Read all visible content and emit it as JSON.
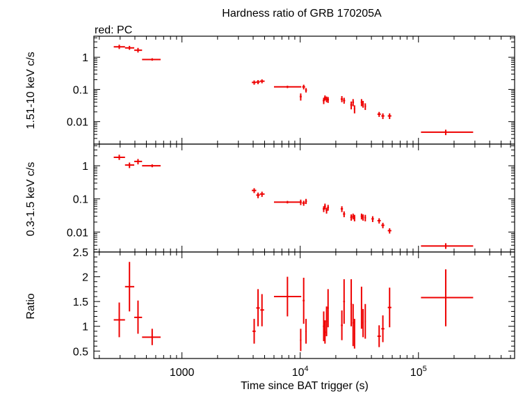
{
  "chart_data": {
    "type": "scatter",
    "title": "Hardness ratio of GRB 170205A",
    "legend": "red: PC",
    "xlabel": "Time since BAT trigger (s)",
    "xscale": "log",
    "xlim": [
      180,
      650000
    ],
    "x_ticks": [
      {
        "value": 1000,
        "label": "1000",
        "sup": ""
      },
      {
        "value": 10000,
        "label": "10",
        "sup": "4"
      },
      {
        "value": 100000,
        "label": "10",
        "sup": "5"
      }
    ],
    "panels": [
      {
        "ylabel": "1.51-10 keV c/s",
        "yscale": "log",
        "ylim": [
          0.002,
          4.5
        ],
        "y_ticks": [
          {
            "value": 1,
            "label": "1"
          },
          {
            "value": 0.1,
            "label": "0.1"
          },
          {
            "value": 0.01,
            "label": "0.01"
          }
        ],
        "points": [
          {
            "x": 295,
            "xlo": 265,
            "xhi": 330,
            "y": 2.1,
            "ylo": 1.8,
            "yhi": 2.45
          },
          {
            "x": 360,
            "xlo": 330,
            "xhi": 395,
            "y": 1.95,
            "ylo": 1.7,
            "yhi": 2.25
          },
          {
            "x": 425,
            "xlo": 395,
            "xhi": 460,
            "y": 1.65,
            "ylo": 1.4,
            "yhi": 1.95
          },
          {
            "x": 560,
            "xlo": 460,
            "xhi": 660,
            "y": 0.85,
            "ylo": 0.78,
            "yhi": 0.93
          },
          {
            "x": 4080,
            "xlo": 3900,
            "xhi": 4250,
            "y": 0.165,
            "ylo": 0.14,
            "yhi": 0.19
          },
          {
            "x": 4400,
            "xlo": 4250,
            "xhi": 4550,
            "y": 0.17,
            "ylo": 0.145,
            "yhi": 0.195
          },
          {
            "x": 4750,
            "xlo": 4550,
            "xhi": 5000,
            "y": 0.18,
            "ylo": 0.155,
            "yhi": 0.205
          },
          {
            "x": 7800,
            "xlo": 6000,
            "xhi": 10200,
            "y": 0.12,
            "ylo": 0.11,
            "yhi": 0.13
          },
          {
            "x": 10100,
            "xlo": 9900,
            "xhi": 10300,
            "y": 0.06,
            "ylo": 0.045,
            "yhi": 0.075
          },
          {
            "x": 10700,
            "xlo": 10400,
            "xhi": 11000,
            "y": 0.12,
            "ylo": 0.1,
            "yhi": 0.14
          },
          {
            "x": 11200,
            "xlo": 11000,
            "xhi": 11400,
            "y": 0.095,
            "ylo": 0.08,
            "yhi": 0.11
          },
          {
            "x": 15800,
            "xlo": 15500,
            "xhi": 16100,
            "y": 0.045,
            "ylo": 0.035,
            "yhi": 0.055
          },
          {
            "x": 16200,
            "xlo": 15900,
            "xhi": 16500,
            "y": 0.055,
            "ylo": 0.045,
            "yhi": 0.065
          },
          {
            "x": 16700,
            "xlo": 16400,
            "xhi": 17000,
            "y": 0.05,
            "ylo": 0.04,
            "yhi": 0.06
          },
          {
            "x": 17200,
            "xlo": 16900,
            "xhi": 17500,
            "y": 0.048,
            "ylo": 0.038,
            "yhi": 0.058
          },
          {
            "x": 22500,
            "xlo": 22000,
            "xhi": 23000,
            "y": 0.05,
            "ylo": 0.04,
            "yhi": 0.062
          },
          {
            "x": 23500,
            "xlo": 23000,
            "xhi": 24000,
            "y": 0.045,
            "ylo": 0.036,
            "yhi": 0.055
          },
          {
            "x": 27000,
            "xlo": 26500,
            "xhi": 27500,
            "y": 0.033,
            "ylo": 0.024,
            "yhi": 0.042
          },
          {
            "x": 28000,
            "xlo": 27500,
            "xhi": 28500,
            "y": 0.04,
            "ylo": 0.03,
            "yhi": 0.05
          },
          {
            "x": 28800,
            "xlo": 28400,
            "xhi": 29200,
            "y": 0.025,
            "ylo": 0.018,
            "yhi": 0.032
          },
          {
            "x": 33000,
            "xlo": 32500,
            "xhi": 33500,
            "y": 0.04,
            "ylo": 0.03,
            "yhi": 0.05
          },
          {
            "x": 34000,
            "xlo": 33500,
            "xhi": 34500,
            "y": 0.035,
            "ylo": 0.027,
            "yhi": 0.044
          },
          {
            "x": 35500,
            "xlo": 35000,
            "xhi": 36000,
            "y": 0.03,
            "ylo": 0.023,
            "yhi": 0.037
          },
          {
            "x": 46500,
            "xlo": 45000,
            "xhi": 48000,
            "y": 0.017,
            "ylo": 0.014,
            "yhi": 0.02
          },
          {
            "x": 50000,
            "xlo": 48500,
            "xhi": 51500,
            "y": 0.015,
            "ylo": 0.012,
            "yhi": 0.018
          },
          {
            "x": 57000,
            "xlo": 55000,
            "xhi": 59000,
            "y": 0.015,
            "ylo": 0.012,
            "yhi": 0.018
          },
          {
            "x": 170000,
            "xlo": 105000,
            "xhi": 290000,
            "y": 0.0047,
            "ylo": 0.0038,
            "yhi": 0.0056
          }
        ]
      },
      {
        "ylabel": "0.3-1.5 keV c/s",
        "yscale": "log",
        "ylim": [
          0.0025,
          4.5
        ],
        "y_ticks": [
          {
            "value": 1,
            "label": "1"
          },
          {
            "value": 0.1,
            "label": "0.1"
          },
          {
            "value": 0.01,
            "label": "0.01"
          }
        ],
        "points": [
          {
            "x": 295,
            "xlo": 265,
            "xhi": 330,
            "y": 1.8,
            "ylo": 1.5,
            "yhi": 2.15
          },
          {
            "x": 360,
            "xlo": 330,
            "xhi": 395,
            "y": 1.05,
            "ylo": 0.85,
            "yhi": 1.25
          },
          {
            "x": 425,
            "xlo": 395,
            "xhi": 460,
            "y": 1.35,
            "ylo": 1.1,
            "yhi": 1.6
          },
          {
            "x": 560,
            "xlo": 460,
            "xhi": 660,
            "y": 1.0,
            "ylo": 0.9,
            "yhi": 1.1
          },
          {
            "x": 4080,
            "xlo": 3900,
            "xhi": 4250,
            "y": 0.18,
            "ylo": 0.15,
            "yhi": 0.21
          },
          {
            "x": 4400,
            "xlo": 4250,
            "xhi": 4550,
            "y": 0.13,
            "ylo": 0.105,
            "yhi": 0.155
          },
          {
            "x": 4750,
            "xlo": 4550,
            "xhi": 5000,
            "y": 0.14,
            "ylo": 0.115,
            "yhi": 0.165
          },
          {
            "x": 7800,
            "xlo": 6000,
            "xhi": 10200,
            "y": 0.08,
            "ylo": 0.073,
            "yhi": 0.087
          },
          {
            "x": 10100,
            "xlo": 9900,
            "xhi": 10300,
            "y": 0.08,
            "ylo": 0.065,
            "yhi": 0.095
          },
          {
            "x": 10700,
            "xlo": 10400,
            "xhi": 11000,
            "y": 0.075,
            "ylo": 0.062,
            "yhi": 0.088
          },
          {
            "x": 11200,
            "xlo": 11000,
            "xhi": 11400,
            "y": 0.085,
            "ylo": 0.07,
            "yhi": 0.1
          },
          {
            "x": 15800,
            "xlo": 15500,
            "xhi": 16100,
            "y": 0.05,
            "ylo": 0.04,
            "yhi": 0.06
          },
          {
            "x": 16200,
            "xlo": 15900,
            "xhi": 16500,
            "y": 0.06,
            "ylo": 0.048,
            "yhi": 0.072
          },
          {
            "x": 16700,
            "xlo": 16400,
            "xhi": 17000,
            "y": 0.045,
            "ylo": 0.036,
            "yhi": 0.054
          },
          {
            "x": 17200,
            "xlo": 16900,
            "xhi": 17500,
            "y": 0.055,
            "ylo": 0.044,
            "yhi": 0.066
          },
          {
            "x": 22500,
            "xlo": 22000,
            "xhi": 23000,
            "y": 0.05,
            "ylo": 0.04,
            "yhi": 0.06
          },
          {
            "x": 23500,
            "xlo": 23000,
            "xhi": 24000,
            "y": 0.035,
            "ylo": 0.028,
            "yhi": 0.042
          },
          {
            "x": 27000,
            "xlo": 26500,
            "xhi": 27500,
            "y": 0.028,
            "ylo": 0.022,
            "yhi": 0.034
          },
          {
            "x": 28000,
            "xlo": 27500,
            "xhi": 28500,
            "y": 0.03,
            "ylo": 0.024,
            "yhi": 0.036
          },
          {
            "x": 28800,
            "xlo": 28400,
            "xhi": 29200,
            "y": 0.027,
            "ylo": 0.021,
            "yhi": 0.033
          },
          {
            "x": 33000,
            "xlo": 32500,
            "xhi": 33500,
            "y": 0.03,
            "ylo": 0.024,
            "yhi": 0.036
          },
          {
            "x": 34000,
            "xlo": 33500,
            "xhi": 34500,
            "y": 0.028,
            "ylo": 0.022,
            "yhi": 0.034
          },
          {
            "x": 35500,
            "xlo": 35000,
            "xhi": 36000,
            "y": 0.027,
            "ylo": 0.021,
            "yhi": 0.033
          },
          {
            "x": 41000,
            "xlo": 40000,
            "xhi": 42000,
            "y": 0.025,
            "ylo": 0.02,
            "yhi": 0.03
          },
          {
            "x": 46500,
            "xlo": 45000,
            "xhi": 48000,
            "y": 0.022,
            "ylo": 0.018,
            "yhi": 0.026
          },
          {
            "x": 50000,
            "xlo": 48500,
            "xhi": 51500,
            "y": 0.016,
            "ylo": 0.013,
            "yhi": 0.019
          },
          {
            "x": 57000,
            "xlo": 55000,
            "xhi": 59000,
            "y": 0.011,
            "ylo": 0.009,
            "yhi": 0.013
          },
          {
            "x": 170000,
            "xlo": 105000,
            "xhi": 290000,
            "y": 0.0038,
            "ylo": 0.0031,
            "yhi": 0.0046
          }
        ]
      },
      {
        "ylabel": "Ratio",
        "yscale": "linear",
        "ylim": [
          0.35,
          2.5
        ],
        "y_ticks": [
          {
            "value": 2.5,
            "label": "2.5"
          },
          {
            "value": 2,
            "label": "2"
          },
          {
            "value": 1.5,
            "label": "1.5"
          },
          {
            "value": 1,
            "label": "1"
          },
          {
            "value": 0.5,
            "label": "0.5"
          }
        ],
        "points": [
          {
            "x": 295,
            "xlo": 265,
            "xhi": 330,
            "y": 1.13,
            "ylo": 0.78,
            "yhi": 1.48
          },
          {
            "x": 360,
            "xlo": 330,
            "xhi": 395,
            "y": 1.8,
            "ylo": 1.3,
            "yhi": 2.3
          },
          {
            "x": 425,
            "xlo": 395,
            "xhi": 460,
            "y": 1.18,
            "ylo": 0.85,
            "yhi": 1.52
          },
          {
            "x": 560,
            "xlo": 460,
            "xhi": 660,
            "y": 0.78,
            "ylo": 0.62,
            "yhi": 0.95
          },
          {
            "x": 4080,
            "xlo": 3950,
            "xhi": 4200,
            "y": 0.9,
            "ylo": 0.65,
            "yhi": 1.15
          },
          {
            "x": 4400,
            "xlo": 4250,
            "xhi": 4550,
            "y": 1.37,
            "ylo": 1.0,
            "yhi": 1.75
          },
          {
            "x": 4750,
            "xlo": 4600,
            "xhi": 4950,
            "y": 1.33,
            "ylo": 1.0,
            "yhi": 1.65
          },
          {
            "x": 7800,
            "xlo": 6000,
            "xhi": 10200,
            "y": 1.6,
            "ylo": 1.2,
            "yhi": 2.0
          },
          {
            "x": 10100,
            "xlo": 9950,
            "xhi": 10250,
            "y": 0.72,
            "ylo": 0.5,
            "yhi": 0.95
          },
          {
            "x": 10700,
            "xlo": 10500,
            "xhi": 10900,
            "y": 1.52,
            "ylo": 1.05,
            "yhi": 1.98
          },
          {
            "x": 11200,
            "xlo": 11050,
            "xhi": 11350,
            "y": 0.9,
            "ylo": 0.65,
            "yhi": 1.15
          },
          {
            "x": 15800,
            "xlo": 15550,
            "xhi": 16050,
            "y": 1.0,
            "ylo": 0.7,
            "yhi": 1.3
          },
          {
            "x": 16200,
            "xlo": 15950,
            "xhi": 16450,
            "y": 0.88,
            "ylo": 0.65,
            "yhi": 1.12
          },
          {
            "x": 16700,
            "xlo": 16450,
            "xhi": 16950,
            "y": 1.1,
            "ylo": 0.8,
            "yhi": 1.4
          },
          {
            "x": 17200,
            "xlo": 16950,
            "xhi": 17450,
            "y": 1.37,
            "ylo": 0.98,
            "yhi": 1.75
          },
          {
            "x": 22500,
            "xlo": 22100,
            "xhi": 22900,
            "y": 1.02,
            "ylo": 0.72,
            "yhi": 1.32
          },
          {
            "x": 23500,
            "xlo": 23100,
            "xhi": 23900,
            "y": 1.5,
            "ylo": 1.05,
            "yhi": 1.95
          },
          {
            "x": 27000,
            "xlo": 26600,
            "xhi": 27400,
            "y": 1.45,
            "ylo": 1.0,
            "yhi": 1.95
          },
          {
            "x": 28000,
            "xlo": 27600,
            "xhi": 28400,
            "y": 1.07,
            "ylo": 0.6,
            "yhi": 1.45
          },
          {
            "x": 28800,
            "xlo": 28500,
            "xhi": 29100,
            "y": 0.85,
            "ylo": 0.55,
            "yhi": 1.15
          },
          {
            "x": 33000,
            "xlo": 32600,
            "xhi": 33400,
            "y": 1.38,
            "ylo": 0.95,
            "yhi": 1.8
          },
          {
            "x": 34000,
            "xlo": 33600,
            "xhi": 34400,
            "y": 1.07,
            "ylo": 0.78,
            "yhi": 1.35
          },
          {
            "x": 35500,
            "xlo": 35100,
            "xhi": 35900,
            "y": 1.1,
            "ylo": 0.75,
            "yhi": 1.45
          },
          {
            "x": 46500,
            "xlo": 45000,
            "xhi": 48000,
            "y": 0.8,
            "ylo": 0.58,
            "yhi": 1.02
          },
          {
            "x": 50000,
            "xlo": 48500,
            "xhi": 51500,
            "y": 0.95,
            "ylo": 0.68,
            "yhi": 1.22
          },
          {
            "x": 57000,
            "xlo": 55000,
            "xhi": 59000,
            "y": 1.38,
            "ylo": 0.98,
            "yhi": 1.78
          },
          {
            "x": 170000,
            "xlo": 105000,
            "xhi": 290000,
            "y": 1.58,
            "ylo": 1.0,
            "yhi": 2.15
          }
        ]
      }
    ]
  }
}
